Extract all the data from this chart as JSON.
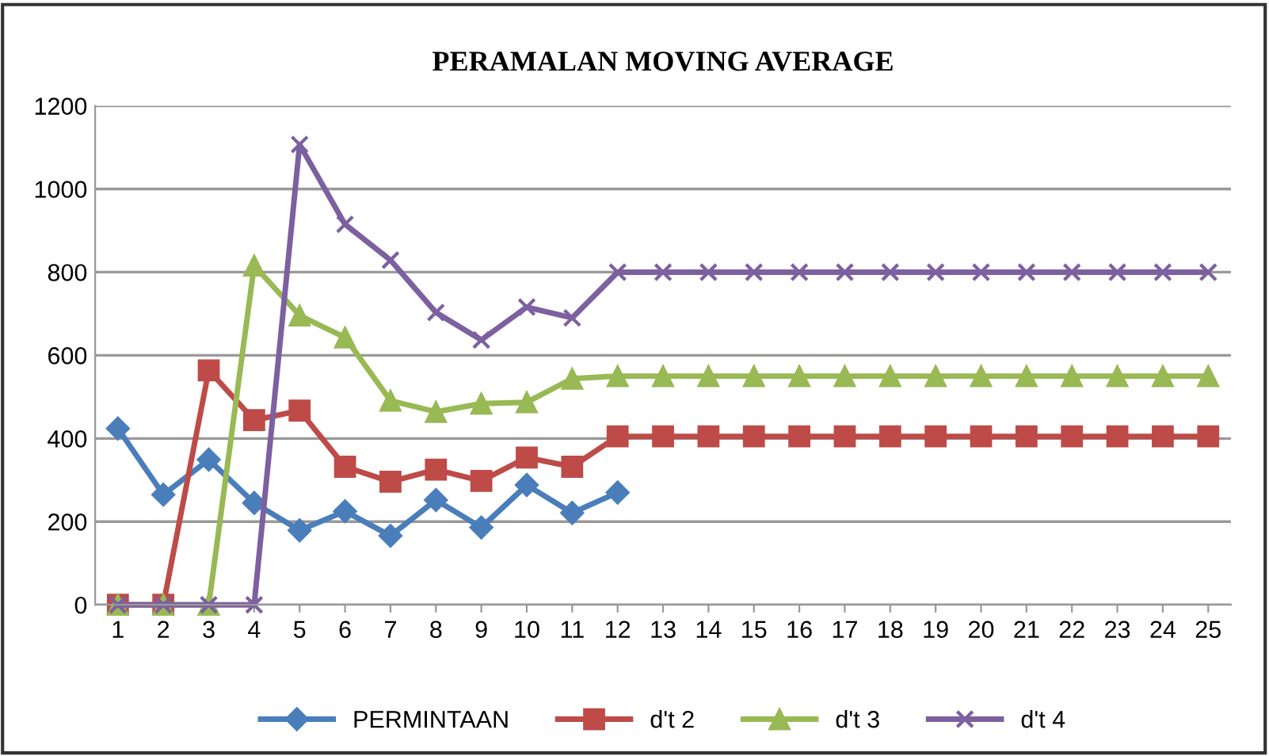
{
  "chart_data": {
    "type": "line",
    "title": "PERAMALAN MOVING AVERAGE",
    "categories": [
      "1",
      "2",
      "3",
      "4",
      "5",
      "6",
      "7",
      "8",
      "9",
      "10",
      "11",
      "12",
      "13",
      "14",
      "15",
      "16",
      "17",
      "18",
      "19",
      "20",
      "21",
      "22",
      "23",
      "24",
      "25"
    ],
    "series": [
      {
        "name": "PERMINTAAN",
        "color": "#4a7ebb",
        "marker": "diamond",
        "values": [
          424,
          265,
          349,
          245,
          179,
          225,
          166,
          252,
          186,
          288,
          221,
          270,
          null,
          null,
          null,
          null,
          null,
          null,
          null,
          null,
          null,
          null,
          null,
          null,
          null
        ]
      },
      {
        "name": "d't 2",
        "color": "#be4b48",
        "marker": "square",
        "values": [
          0,
          0,
          564,
          444,
          467,
          332,
          296,
          325,
          298,
          354,
          332,
          405,
          405,
          405,
          405,
          405,
          405,
          405,
          405,
          405,
          405,
          405,
          405,
          405,
          405
        ]
      },
      {
        "name": "d't 3",
        "color": "#98b954",
        "marker": "triangle",
        "values": [
          0,
          0,
          0,
          816,
          696,
          643,
          491,
          464,
          484,
          487,
          544,
          550,
          550,
          550,
          550,
          550,
          550,
          550,
          550,
          550,
          550,
          550,
          550,
          550,
          550
        ]
      },
      {
        "name": "d't 4",
        "color": "#7d60a0",
        "marker": "cross",
        "values": [
          0,
          0,
          0,
          0,
          1107,
          915,
          829,
          703,
          637,
          716,
          690,
          800,
          800,
          800,
          800,
          800,
          800,
          800,
          800,
          800,
          800,
          800,
          800,
          800,
          800
        ]
      }
    ],
    "ylim": [
      0,
      1200
    ],
    "yticks": [
      0,
      200,
      400,
      600,
      800,
      1000,
      1200
    ],
    "grid": "y",
    "legend": "bottom",
    "line_style": "solid"
  }
}
